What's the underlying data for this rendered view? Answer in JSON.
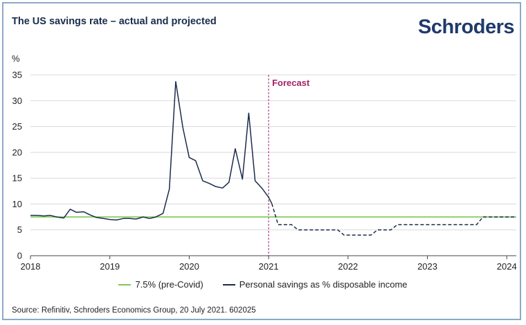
{
  "header": {
    "title": "The US savings rate – actual and projected",
    "logo": "Schroders"
  },
  "footer": {
    "source": "Source: Refinitiv, Schroders Economics Group, 20 July 2021. 602025"
  },
  "colors": {
    "actual": "#1a2b4c",
    "baseline": "#7ec850",
    "forecast_marker": "#a0226a",
    "grid": "#d9d9d9"
  },
  "chart_data": {
    "type": "line",
    "ylabel": "%",
    "ylim": [
      0,
      35
    ],
    "yticks": [
      0,
      5,
      10,
      15,
      20,
      25,
      30,
      35
    ],
    "xlim": [
      2018,
      2024.12
    ],
    "xticks": [
      "2018",
      "2019",
      "2020",
      "2021",
      "2022",
      "2023",
      "2024"
    ],
    "grid": "horizontal",
    "legend_position": "bottom",
    "annotations": [
      {
        "x": 2021,
        "label": "Forecast"
      }
    ],
    "series": [
      {
        "name": "7.5% (pre-Covid)",
        "style": "solid",
        "x": [
          2018,
          2024.12
        ],
        "y": [
          7.5,
          7.5
        ]
      },
      {
        "name": "Personal savings as % disposable income",
        "style": "solid",
        "x": [
          2018.0,
          2018.08,
          2018.17,
          2018.25,
          2018.33,
          2018.42,
          2018.5,
          2018.58,
          2018.67,
          2018.75,
          2018.83,
          2018.92,
          2019.0,
          2019.08,
          2019.17,
          2019.25,
          2019.33,
          2019.42,
          2019.5,
          2019.58,
          2019.67,
          2019.75,
          2019.83,
          2019.92,
          2020.0,
          2020.08,
          2020.17,
          2020.25,
          2020.33,
          2020.42,
          2020.5,
          2020.58,
          2020.67,
          2020.75,
          2020.83,
          2020.92,
          2021.0,
          2021.04
        ],
        "y": [
          7.8,
          7.8,
          7.7,
          7.8,
          7.5,
          7.3,
          9.0,
          8.4,
          8.5,
          7.9,
          7.4,
          7.2,
          7.0,
          6.9,
          7.2,
          7.2,
          7.1,
          7.5,
          7.2,
          7.5,
          8.2,
          12.9,
          33.7,
          24.8,
          19.0,
          18.4,
          14.5,
          14.0,
          13.4,
          13.1,
          14.2,
          20.7,
          14.8,
          27.6,
          14.5,
          13.0,
          11.3,
          10.1
        ]
      },
      {
        "name": "",
        "style": "dashed",
        "x": [
          2021.04,
          2021.12,
          2021.29,
          2021.37,
          2021.62,
          2021.87,
          2021.95,
          2022.29,
          2022.37,
          2022.54,
          2022.62,
          2023.62,
          2023.7,
          2024.12
        ],
        "y": [
          10.1,
          6.0,
          6.0,
          5.0,
          5.0,
          5.0,
          4.0,
          4.0,
          5.0,
          5.0,
          6.0,
          6.0,
          7.5,
          7.5
        ]
      }
    ]
  }
}
